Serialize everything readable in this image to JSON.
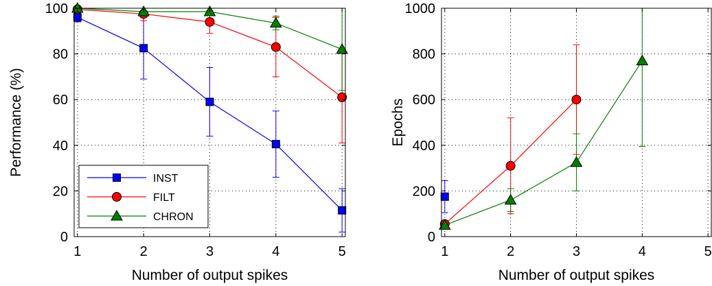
{
  "chart_data": [
    {
      "type": "line",
      "title": "",
      "xlabel": "Number of output spikes",
      "ylabel": "Performance (%)",
      "xlim": [
        0.95,
        5.05
      ],
      "ylim": [
        0,
        100
      ],
      "xticks": [
        1,
        2,
        3,
        4,
        5
      ],
      "yticks": [
        0,
        20,
        40,
        60,
        80,
        100
      ],
      "grid": true,
      "legend_position": "bottom-left",
      "series": [
        {
          "name": "INST",
          "color": "#0000ff",
          "marker": "square",
          "x": [
            1,
            2,
            3,
            4,
            5
          ],
          "y": [
            96,
            82.5,
            59,
            40.5,
            11.5
          ],
          "err": [
            2,
            13.5,
            15,
            14.5,
            9.5
          ]
        },
        {
          "name": "FILT",
          "color": "#ff0000",
          "marker": "circle",
          "x": [
            1,
            2,
            3,
            4,
            5
          ],
          "y": [
            99.5,
            97.5,
            94,
            83,
            61
          ],
          "err": [
            1,
            3,
            5,
            13,
            20
          ]
        },
        {
          "name": "CHRON",
          "color": "#008000",
          "marker": "triangle",
          "x": [
            1,
            2,
            3,
            4,
            5
          ],
          "y": [
            100,
            98.5,
            98.5,
            93.5,
            82
          ],
          "err": [
            0.5,
            2,
            1.5,
            3,
            18
          ]
        }
      ]
    },
    {
      "type": "line",
      "title": "",
      "xlabel": "Number of output spikes",
      "ylabel": "Epochs",
      "xlim": [
        0.95,
        5.05
      ],
      "ylim": [
        0,
        1000
      ],
      "xticks": [
        1,
        2,
        3,
        4,
        5
      ],
      "yticks": [
        0,
        200,
        400,
        600,
        800,
        1000
      ],
      "grid": true,
      "series": [
        {
          "name": "INST",
          "color": "#0000ff",
          "marker": "square",
          "x": [
            1
          ],
          "y": [
            175
          ],
          "err": [
            70
          ]
        },
        {
          "name": "FILT",
          "color": "#ff0000",
          "marker": "circle",
          "x": [
            1,
            2,
            3
          ],
          "y": [
            55,
            310,
            600
          ],
          "err": [
            10,
            210,
            240
          ]
        },
        {
          "name": "CHRON",
          "color": "#008000",
          "marker": "triangle",
          "x": [
            1,
            2,
            3,
            4
          ],
          "y": [
            50,
            160,
            325,
            770
          ],
          "err": [
            10,
            50,
            125,
            375
          ]
        }
      ]
    }
  ]
}
